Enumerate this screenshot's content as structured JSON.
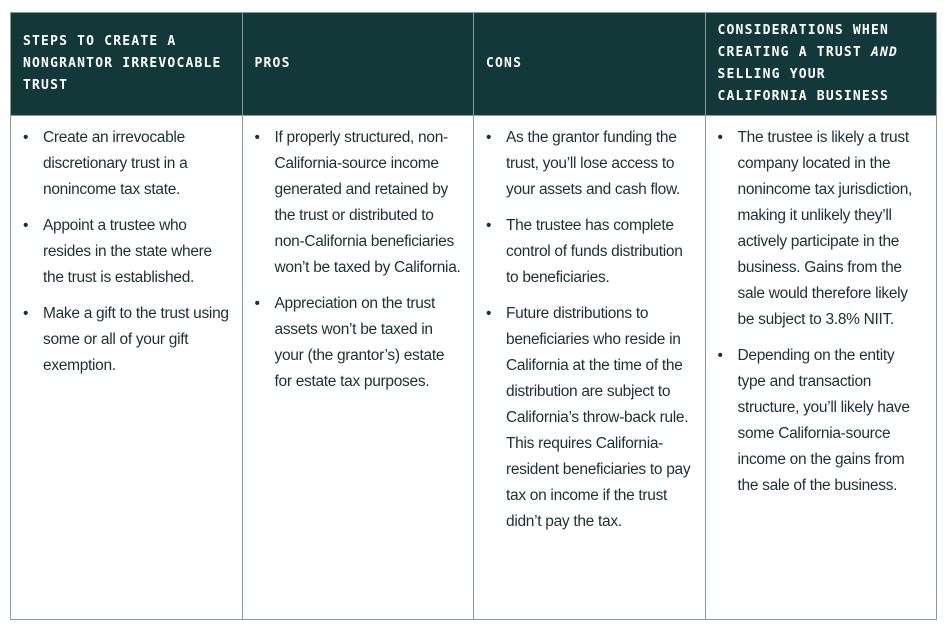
{
  "headers": [
    {
      "text": "STEPS TO CREATE A NONGRANTOR IRREVOCABLE TRUST"
    },
    {
      "text": "PROS"
    },
    {
      "text": "CONS"
    },
    {
      "pre": "CONSIDERATIONS WHEN CREATING A TRUST ",
      "em": "AND",
      "post": " SELLING YOUR CALIFORNIA BUSINESS"
    }
  ],
  "columns": [
    [
      "Create an irrevocable discretionary trust in a nonincome tax state.",
      "Appoint a trustee who resides in the state where the trust is established.",
      "Make a gift to the trust using some or all of your gift exemption."
    ],
    [
      "If properly structured, non-California-source income generated and retained by the trust or distributed to non-California beneficiaries won’t be taxed by California.",
      "Appreciation on the trust assets won’t be taxed in your (the grantor’s) estate for estate tax purposes."
    ],
    [
      "As the grantor funding the trust, you’ll lose access to your assets and cash flow.",
      "The trustee has complete control of funds distribution to beneficiaries.",
      "Future distributions to beneficiaries who reside in California at the time of the distribution are subject to California’s throw-back rule. This requires California-resident beneficiaries to pay tax on income if the trust didn’t pay the tax."
    ],
    [
      "The trustee is likely a trust company located in the nonincome tax jurisdiction, making it unlikely they’ll actively participate in the business. Gains from the sale would therefore likely be subject to 3.8% NIIT.",
      "Depending on the entity type and transaction structure, you’ll likely have some California-source income on the gains from the sale of the business."
    ]
  ],
  "colors": {
    "header_bg": "#13383a",
    "text": "#1b3232",
    "border": "#8a9a9a"
  }
}
